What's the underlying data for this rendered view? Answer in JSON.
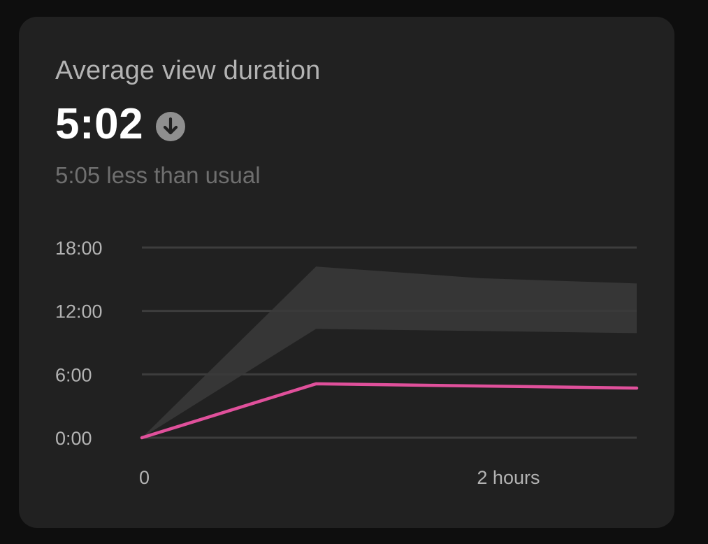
{
  "card": {
    "title": "Average view duration",
    "value": "5:02",
    "trend_icon": "arrow-down-circle-icon",
    "comparison": "5:05 less than usual"
  },
  "colors": {
    "background": "#0e0e0e",
    "card": "#212121",
    "series_line": "#e0509b",
    "typical_range_band": "#3a3a3a",
    "grid": "#3d3d3d"
  },
  "chart_data": {
    "type": "line",
    "x_unit": "hours",
    "x_min": 0,
    "x_max": 2.7,
    "ylim": [
      0,
      18
    ],
    "y_ticks": [
      {
        "value": 0,
        "label": "0:00"
      },
      {
        "value": 6,
        "label": "6:00"
      },
      {
        "value": 12,
        "label": "12:00"
      },
      {
        "value": 18,
        "label": "18:00"
      }
    ],
    "x_ticks": [
      {
        "value": 0,
        "label": "0"
      },
      {
        "value": 2,
        "label": "2 hours"
      }
    ],
    "series": [
      {
        "role": "this video",
        "points": [
          {
            "x": 0,
            "y": 0
          },
          {
            "x": 0.95,
            "y": 5.1
          },
          {
            "x": 2.7,
            "y": 4.7
          }
        ]
      }
    ],
    "band": {
      "role": "typical range",
      "upper": [
        {
          "x": 0,
          "y": 0
        },
        {
          "x": 0.95,
          "y": 16.2
        },
        {
          "x": 1.85,
          "y": 15.1
        },
        {
          "x": 2.7,
          "y": 14.6
        }
      ],
      "lower": [
        {
          "x": 0,
          "y": 0
        },
        {
          "x": 0.95,
          "y": 10.3
        },
        {
          "x": 1.85,
          "y": 10.1
        },
        {
          "x": 2.7,
          "y": 9.9
        }
      ]
    },
    "grid": true
  }
}
